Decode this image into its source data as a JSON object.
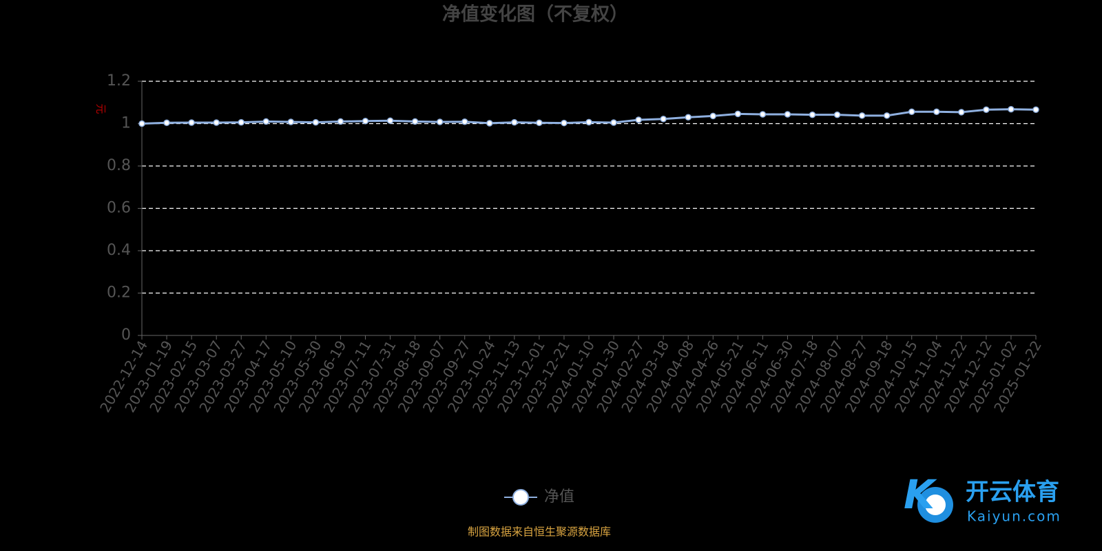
{
  "chart_data": {
    "type": "line",
    "title": "净值变化图（不复权）",
    "y_label": "元",
    "categories": [
      "2022-12-14",
      "2023-01-19",
      "2023-02-15",
      "2023-03-07",
      "2023-03-27",
      "2023-04-17",
      "2023-05-10",
      "2023-05-30",
      "2023-06-19",
      "2023-07-11",
      "2023-07-31",
      "2023-08-18",
      "2023-09-07",
      "2023-09-27",
      "2023-10-24",
      "2023-11-13",
      "2023-12-01",
      "2023-12-21",
      "2024-01-10",
      "2024-01-30",
      "2024-02-27",
      "2024-03-18",
      "2024-04-08",
      "2024-04-26",
      "2024-05-21",
      "2024-06-11",
      "2024-06-30",
      "2024-07-18",
      "2024-08-07",
      "2024-08-27",
      "2024-09-18",
      "2024-10-15",
      "2024-11-04",
      "2024-11-22",
      "2024-12-12",
      "2025-01-02",
      "2025-01-22"
    ],
    "series": [
      {
        "name": "净值",
        "color": "#8fb0e0",
        "values": [
          1.0,
          1.004,
          1.005,
          1.005,
          1.006,
          1.01,
          1.008,
          1.006,
          1.01,
          1.012,
          1.014,
          1.01,
          1.008,
          1.009,
          1.002,
          1.006,
          1.004,
          1.003,
          1.007,
          1.005,
          1.018,
          1.022,
          1.03,
          1.036,
          1.046,
          1.044,
          1.044,
          1.042,
          1.042,
          1.038,
          1.038,
          1.056,
          1.056,
          1.054,
          1.066,
          1.068,
          1.066
        ]
      }
    ],
    "ylim": [
      0,
      1.2
    ],
    "yticks": [
      0,
      0.2,
      0.4,
      0.6,
      0.8,
      1,
      1.2
    ],
    "grid": true,
    "source": "制图数据来自恒生聚源数据库"
  },
  "watermark": {
    "brand": "开云体育",
    "site": "Kaiyun.com"
  }
}
